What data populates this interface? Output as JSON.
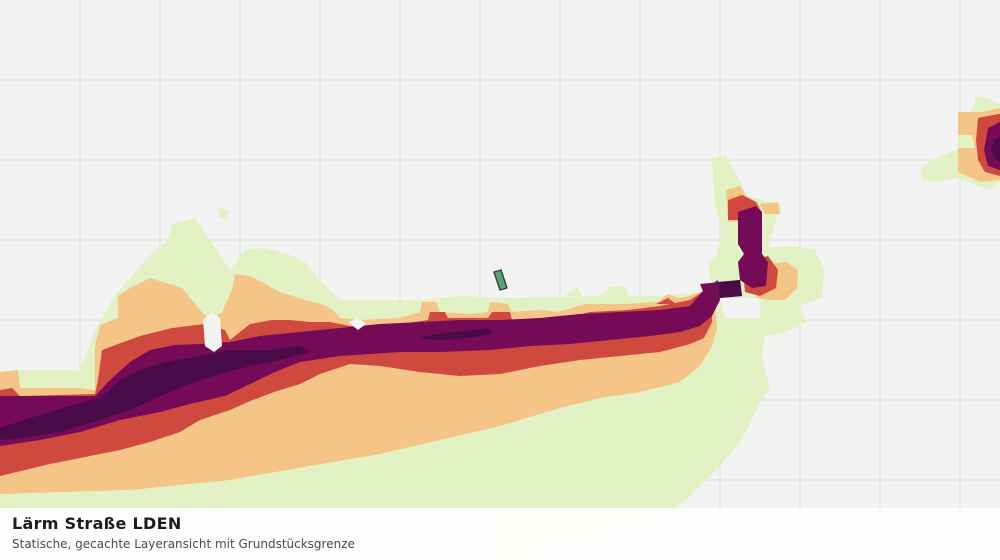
{
  "caption": {
    "title": "Lärm Straße LDEN",
    "subtitle": "Statische, gecachte Layeransicht mit Grundstücksgrenze"
  },
  "noise_classes": [
    {
      "level": 1,
      "color": "#e2f2c4"
    },
    {
      "level": 2,
      "color": "#f4c586"
    },
    {
      "level": 3,
      "color": "#d0493e"
    },
    {
      "level": 4,
      "color": "#750a57"
    },
    {
      "level": 5,
      "color": "#4a0c48"
    }
  ],
  "parcel_boundary": {
    "fill": "#5fa177",
    "stroke": "#1f4b2f"
  },
  "grid_color": "#dcdfdc",
  "background_color": "#f2f3f2"
}
